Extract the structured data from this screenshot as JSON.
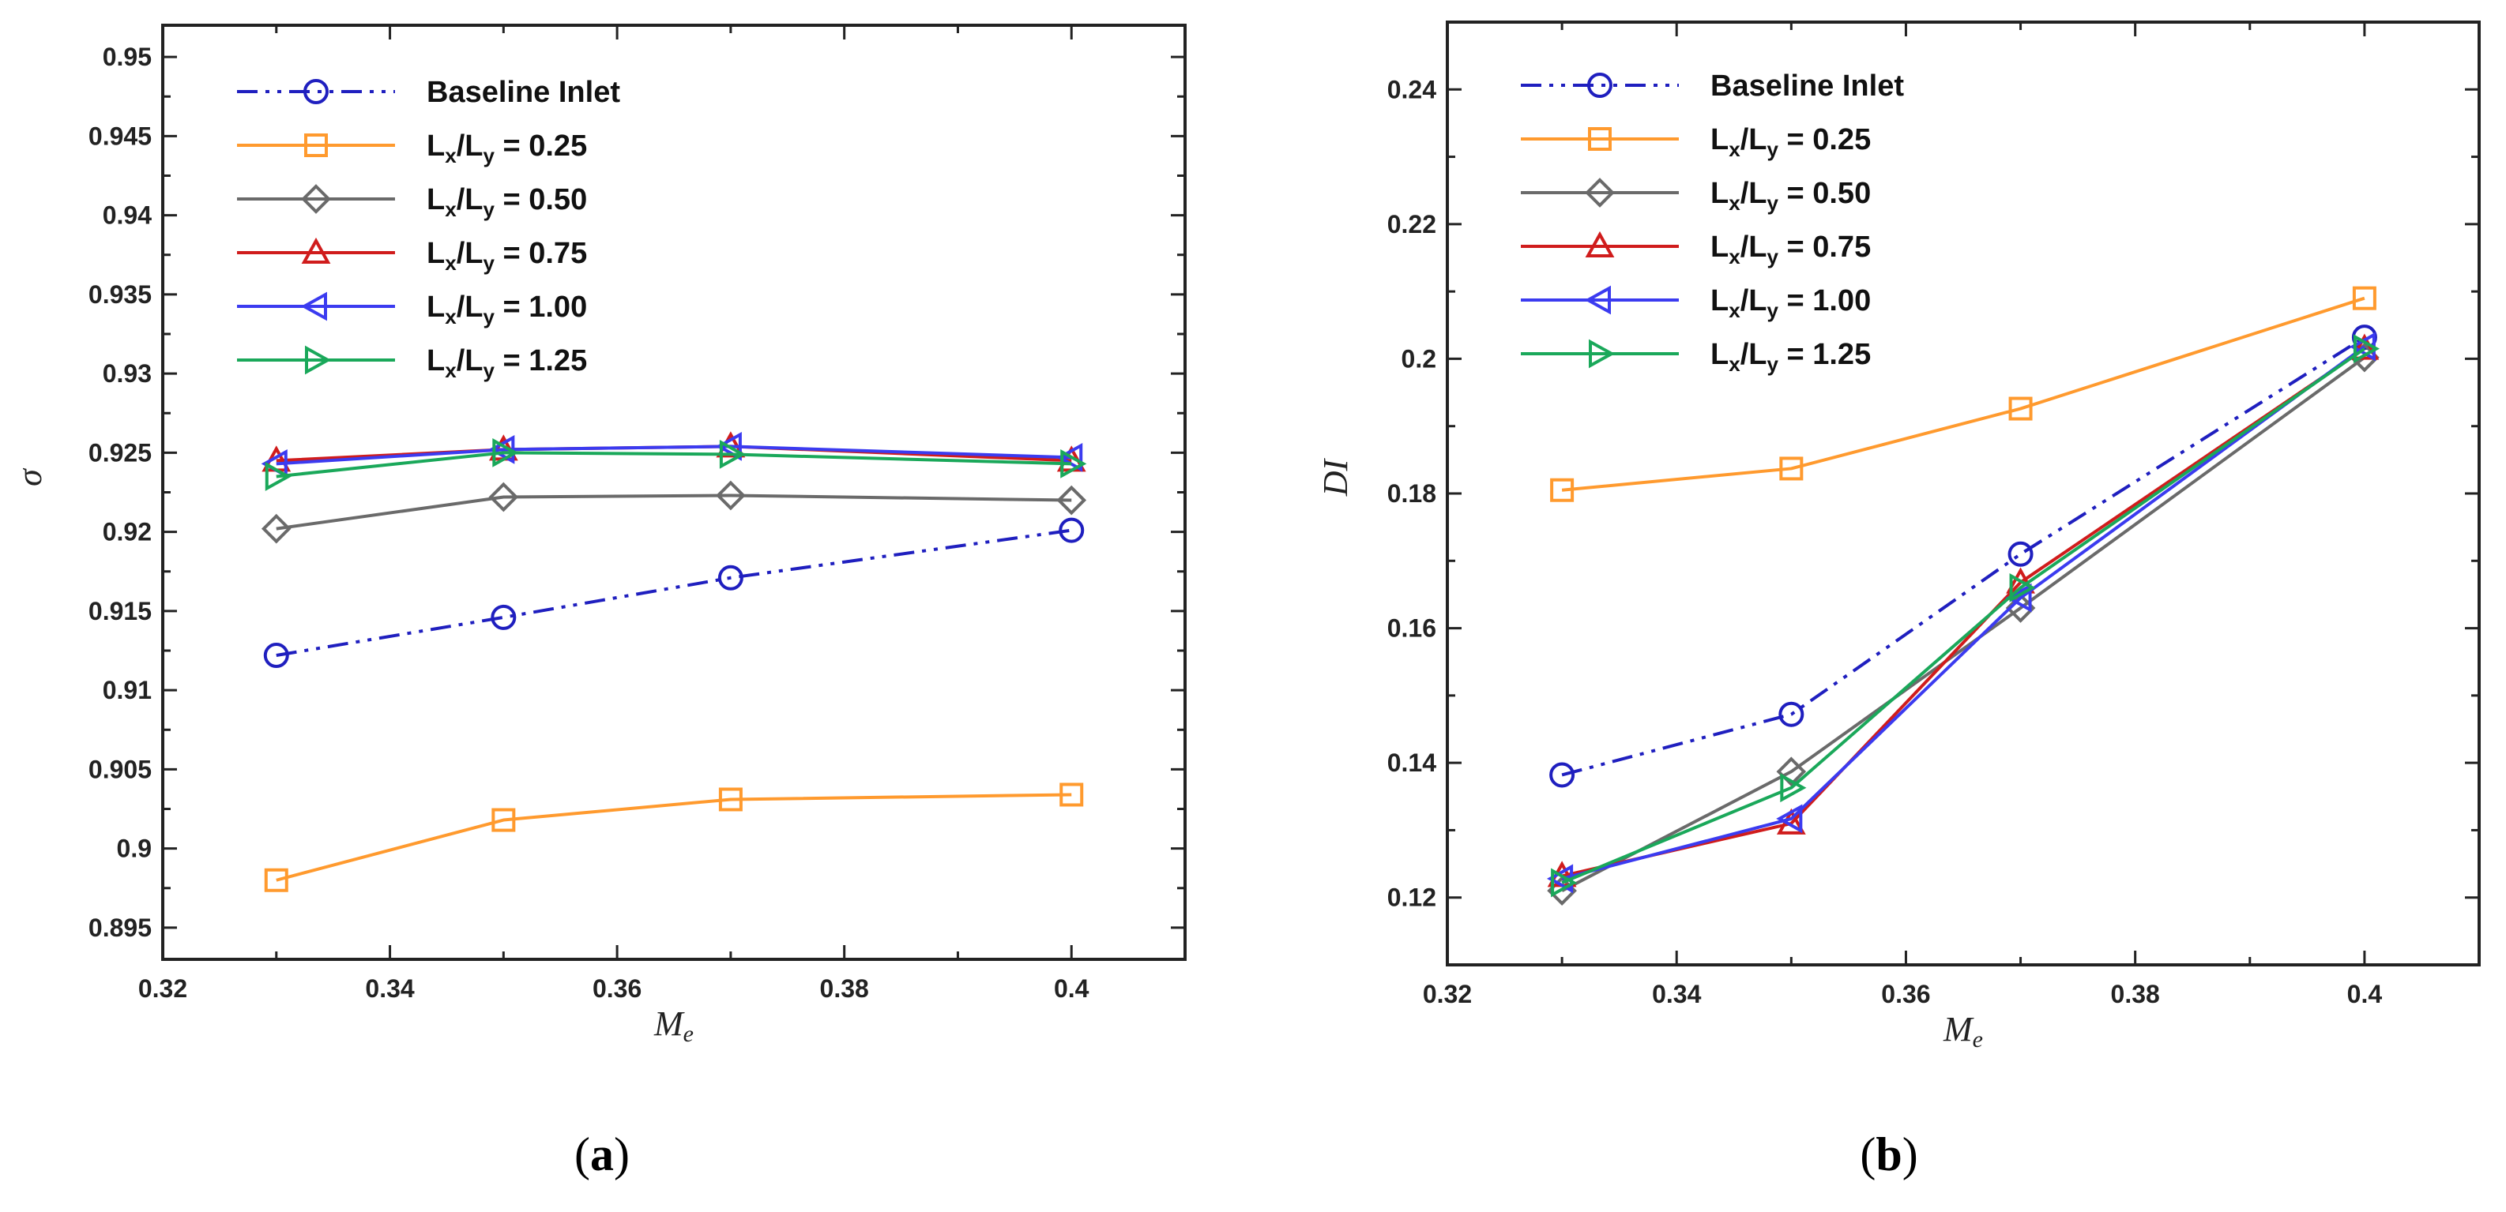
{
  "chart_data": [
    {
      "type": "line",
      "panel_label": "a",
      "xlabel": "M",
      "xlabel_sub": "e",
      "ylabel": "σ",
      "xlim": [
        0.32,
        0.41
      ],
      "ylim": [
        0.893,
        0.952
      ],
      "xticks": [
        "0.32",
        "0.34",
        "0.36",
        "0.38",
        "0.4"
      ],
      "xtick_values": [
        0.32,
        0.34,
        0.36,
        0.38,
        0.4
      ],
      "yticks": [
        "0.895",
        "0.9",
        "0.905",
        "0.91",
        "0.915",
        "0.92",
        "0.925",
        "0.93",
        "0.935",
        "0.94",
        "0.945",
        "0.95"
      ],
      "ytick_values": [
        0.895,
        0.9,
        0.905,
        0.91,
        0.915,
        0.92,
        0.925,
        0.93,
        0.935,
        0.94,
        0.945,
        0.95
      ],
      "x": [
        0.33,
        0.35,
        0.37,
        0.4
      ],
      "series": [
        {
          "name": "Baseline Inlet",
          "values": [
            0.9122,
            0.9146,
            0.9171,
            0.9201
          ]
        },
        {
          "name": "Lx/Ly = 0.25",
          "values": [
            0.898,
            0.9018,
            0.9031,
            0.9034
          ]
        },
        {
          "name": "Lx/Ly = 0.50",
          "values": [
            0.9202,
            0.9222,
            0.9223,
            0.922
          ]
        },
        {
          "name": "Lx/Ly = 0.75",
          "values": [
            0.9245,
            0.9252,
            0.9254,
            0.9245
          ]
        },
        {
          "name": "Lx/Ly = 1.00",
          "values": [
            0.9243,
            0.9252,
            0.9254,
            0.9247
          ]
        },
        {
          "name": "Lx/Ly = 1.25",
          "values": [
            0.9235,
            0.925,
            0.9249,
            0.9243
          ]
        }
      ]
    },
    {
      "type": "line",
      "panel_label": "b",
      "xlabel": "M",
      "xlabel_sub": "e",
      "ylabel": "DI",
      "xlim": [
        0.32,
        0.41
      ],
      "ylim": [
        0.11,
        0.25
      ],
      "xticks": [
        "0.32",
        "0.34",
        "0.36",
        "0.38",
        "0.4"
      ],
      "xtick_values": [
        0.32,
        0.34,
        0.36,
        0.38,
        0.4
      ],
      "yticks": [
        "0.12",
        "0.14",
        "0.16",
        "0.18",
        "0.2",
        "0.22",
        "0.24"
      ],
      "ytick_values": [
        0.12,
        0.14,
        0.16,
        0.18,
        0.2,
        0.22,
        0.24
      ],
      "x": [
        0.33,
        0.35,
        0.37,
        0.4
      ],
      "series": [
        {
          "name": "Baseline Inlet",
          "values": [
            0.1382,
            0.1472,
            0.171,
            0.2032
          ]
        },
        {
          "name": "Lx/Ly = 0.25",
          "values": [
            0.1805,
            0.1837,
            0.1926,
            0.209
          ]
        },
        {
          "name": "Lx/Ly = 0.50",
          "values": [
            0.121,
            0.1387,
            0.163,
            0.2002
          ]
        },
        {
          "name": "Lx/Ly = 0.75",
          "values": [
            0.1232,
            0.131,
            0.1668,
            0.2015
          ]
        },
        {
          "name": "Lx/Ly = 1.00",
          "values": [
            0.1228,
            0.1317,
            0.1645,
            0.2018
          ]
        },
        {
          "name": "Lx/Ly = 1.25",
          "values": [
            0.1222,
            0.1363,
            0.166,
            0.2015
          ]
        }
      ]
    }
  ],
  "legend": [
    {
      "label": "Baseline Inlet",
      "text": "Baseline Inlet",
      "color": "#1f1fbf",
      "marker": "circle",
      "dash": "dashdot"
    },
    {
      "label": "Lx/Ly = 0.25",
      "text": "L",
      "sub1": "x",
      "mid": "/L",
      "sub2": "y",
      "tail": " = 0.25",
      "color": "#ff9a2e",
      "marker": "square",
      "dash": "solid"
    },
    {
      "label": "Lx/Ly = 0.50",
      "text": "L",
      "sub1": "x",
      "mid": "/L",
      "sub2": "y",
      "tail": " = 0.50",
      "color": "#6a6a6a",
      "marker": "diamond",
      "dash": "solid"
    },
    {
      "label": "Lx/Ly = 0.75",
      "text": "L",
      "sub1": "x",
      "mid": "/L",
      "sub2": "y",
      "tail": " = 0.75",
      "color": "#d01c1c",
      "marker": "triangle-up",
      "dash": "solid"
    },
    {
      "label": "Lx/Ly = 1.00",
      "text": "L",
      "sub1": "x",
      "mid": "/L",
      "sub2": "y",
      "tail": " = 1.00",
      "color": "#3b3bf0",
      "marker": "triangle-left",
      "dash": "solid"
    },
    {
      "label": "Lx/Ly = 1.25",
      "text": "L",
      "sub1": "x",
      "mid": "/L",
      "sub2": "y",
      "tail": " = 1.25",
      "color": "#1aa85a",
      "marker": "triangle-right",
      "dash": "solid"
    }
  ],
  "captions": {
    "a": {
      "open": "(",
      "letter": "a",
      "close": ")"
    },
    "b": {
      "open": "(",
      "letter": "b",
      "close": ")"
    }
  }
}
